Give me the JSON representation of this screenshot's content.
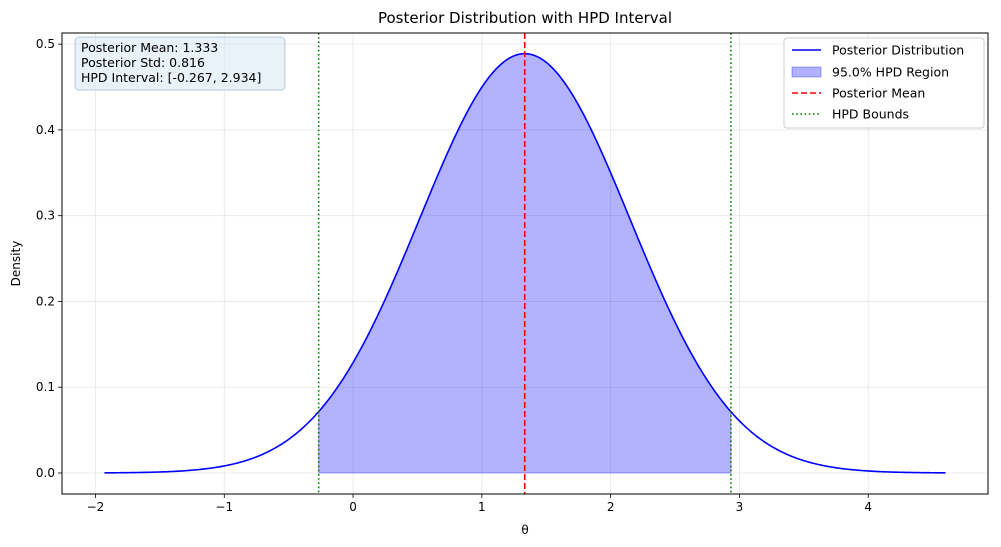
{
  "chart_data": {
    "type": "line",
    "title": "Posterior Distribution with HPD Interval",
    "xlabel": "θ",
    "ylabel": "Density",
    "xlim": [
      -2.26,
      4.93
    ],
    "ylim": [
      -0.0245,
      0.513
    ],
    "xticks": [
      -2,
      -1,
      0,
      1,
      2,
      3,
      4
    ],
    "xtick_labels": [
      "−2",
      "−1",
      "0",
      "1",
      "2",
      "3",
      "4"
    ],
    "yticks": [
      0.0,
      0.1,
      0.2,
      0.3,
      0.4,
      0.5
    ],
    "ytick_labels": [
      "0.0",
      "0.1",
      "0.2",
      "0.3",
      "0.4",
      "0.5"
    ],
    "grid": true,
    "legend_position": "top-right",
    "posterior": {
      "distribution": "normal",
      "mean": 1.333,
      "std": 0.816,
      "x_range": [
        -1.93,
        4.6
      ],
      "color": "#0000ff"
    },
    "series": [
      {
        "name": "Posterior Distribution",
        "kind": "line",
        "color": "#0000ff"
      },
      {
        "name": "95.0% HPD Region",
        "kind": "fill",
        "color": "#0000ff",
        "range": [
          -0.267,
          2.934
        ]
      },
      {
        "name": "Posterior Mean",
        "kind": "vline",
        "color": "#ff0000",
        "x": 1.333,
        "style": "dashed"
      },
      {
        "name": "HPD Bounds",
        "kind": "vline",
        "color": "#008000",
        "x": [
          -0.267,
          2.934
        ],
        "style": "dotted"
      }
    ],
    "annotation": {
      "lines": [
        "Posterior Mean: 1.333",
        "Posterior Std: 0.816",
        "HPD Interval: [-0.267, 2.934]"
      ]
    }
  }
}
